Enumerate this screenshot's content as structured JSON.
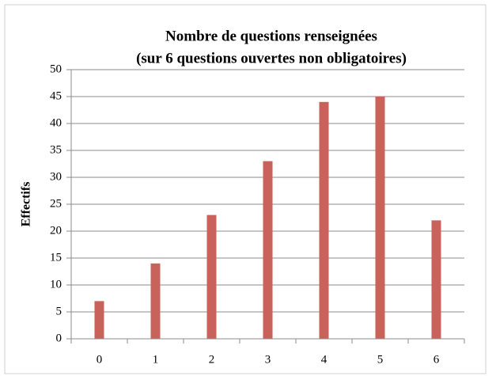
{
  "chart_data": {
    "type": "bar",
    "title": [
      "Nombre de questions renseignées",
      "(sur 6 questions ouvertes non obligatoires)"
    ],
    "y_label": "Effectifs",
    "categories": [
      "0",
      "1",
      "2",
      "3",
      "4",
      "5",
      "6"
    ],
    "values": [
      7,
      14,
      23,
      33,
      44,
      45,
      22
    ],
    "color": "#c8625a",
    "ylim": [
      0,
      50
    ],
    "yticks": [
      0,
      5,
      10,
      15,
      20,
      25,
      30,
      35,
      40,
      45,
      50
    ],
    "grid": true
  }
}
